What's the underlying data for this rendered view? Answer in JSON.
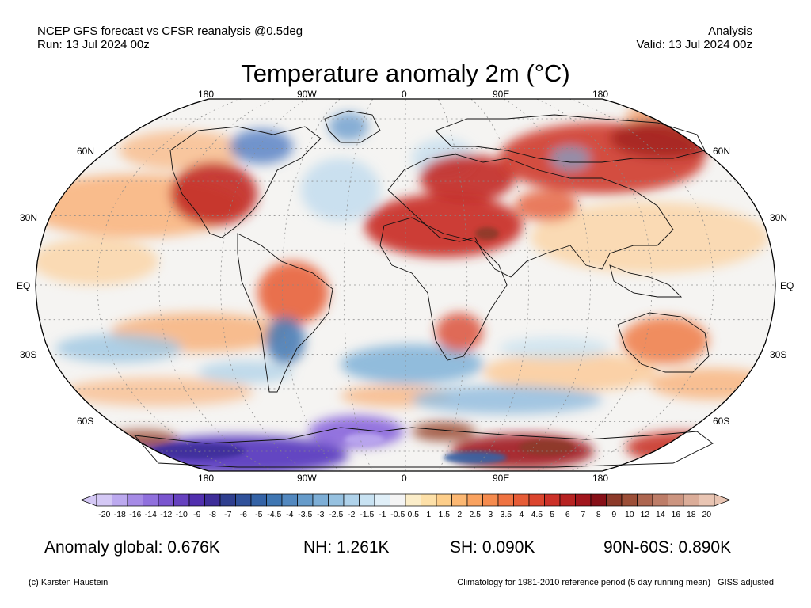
{
  "header": {
    "left_line1": "NCEP GFS forecast vs CFSR reanalysis @0.5deg",
    "left_line2": "Run: 13 Jul 2024 00z",
    "right_line1": "Analysis",
    "right_line2": "Valid: 13 Jul 2024 00z"
  },
  "title": "Temperature anomaly 2m (°C)",
  "map": {
    "lon_labels_top": [
      "180",
      "90W",
      "0",
      "90E",
      "180"
    ],
    "lon_labels_bottom": [
      "180",
      "90W",
      "0",
      "90E",
      "180"
    ],
    "lat_labels_left": [
      "60N",
      "30N",
      "EQ",
      "30S",
      "60S"
    ],
    "lat_labels_right": [
      "60N",
      "30N",
      "EQ",
      "30S",
      "60S"
    ]
  },
  "colorbar": {
    "ticks": [
      "-20",
      "-18",
      "-16",
      "-14",
      "-12",
      "-10",
      "-9",
      "-8",
      "-7",
      "-6",
      "-5",
      "-4.5",
      "-4",
      "-3.5",
      "-3",
      "-2.5",
      "-2",
      "-1.5",
      "-1",
      "-0.5",
      "0.5",
      "1",
      "1.5",
      "2",
      "2.5",
      "3",
      "3.5",
      "4",
      "4.5",
      "5",
      "6",
      "7",
      "8",
      "9",
      "10",
      "12",
      "14",
      "16",
      "18",
      "20"
    ],
    "colors": [
      "#d4c8f5",
      "#bca9ef",
      "#a68be6",
      "#9070dd",
      "#7a55cf",
      "#6641bf",
      "#512fae",
      "#3e2d99",
      "#2f3f8f",
      "#30519a",
      "#3463a6",
      "#3f76b2",
      "#5288bf",
      "#669bca",
      "#7daed6",
      "#96c1e0",
      "#afd2ea",
      "#c8e2f2",
      "#e0eff8",
      "#f4f4f4",
      "#fbedc9",
      "#fde0a8",
      "#fdce8a",
      "#fcb873",
      "#f9a25f",
      "#f58b4e",
      "#ef7342",
      "#e65c37",
      "#db452e",
      "#cc3128",
      "#b72322",
      "#a1161d",
      "#871018",
      "#8c3a2a",
      "#9c4f38",
      "#ad6650",
      "#bd7d68",
      "#cc9580",
      "#dbad99",
      "#e9c5b3"
    ]
  },
  "stats": {
    "global": "Anomaly global: 0.676K",
    "nh": "NH: 1.261K",
    "sh": "SH: 0.090K",
    "arctic": "90N-60S: 0.890K"
  },
  "footer": {
    "left": "(c) Karsten Haustein",
    "right": "Climatology for 1981-2010 reference period (5 day running mean) | GISS adjusted"
  }
}
